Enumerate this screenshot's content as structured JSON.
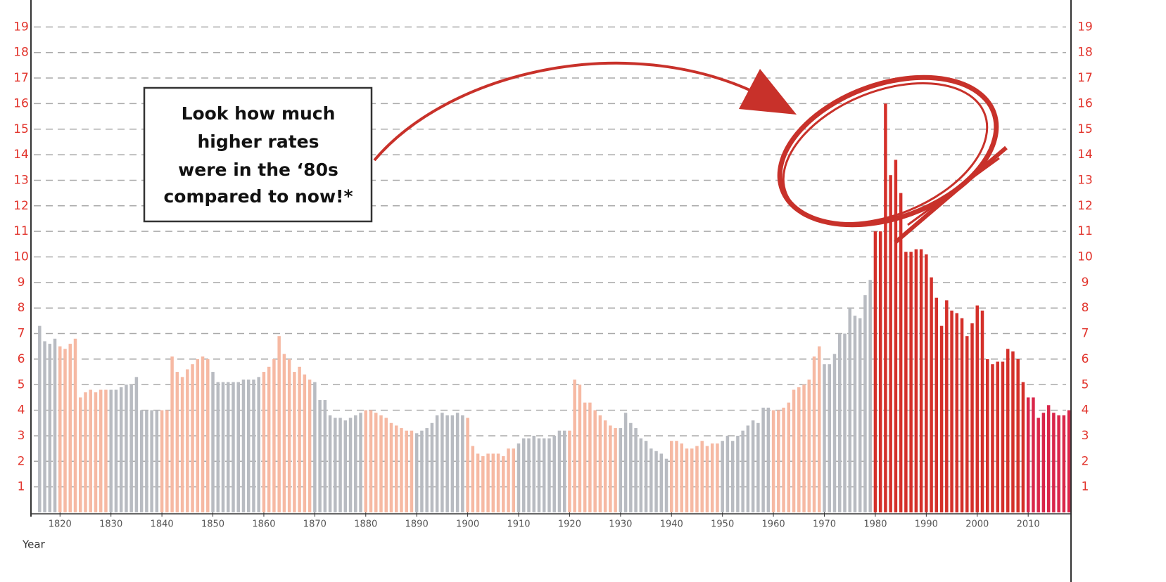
{
  "chart_data": {
    "type": "bar",
    "annotation": [
      "Look how much",
      "higher rates",
      "were in the ‘80s",
      "compared to now!*"
    ],
    "x_label": "Year",
    "x": [
      1816,
      1817,
      1818,
      1819,
      1820,
      1821,
      1822,
      1823,
      1824,
      1825,
      1826,
      1827,
      1828,
      1829,
      1830,
      1831,
      1832,
      1833,
      1834,
      1835,
      1836,
      1837,
      1838,
      1839,
      1840,
      1841,
      1842,
      1843,
      1844,
      1845,
      1846,
      1847,
      1848,
      1849,
      1850,
      1851,
      1852,
      1853,
      1854,
      1855,
      1856,
      1857,
      1858,
      1859,
      1860,
      1861,
      1862,
      1863,
      1864,
      1865,
      1866,
      1867,
      1868,
      1869,
      1870,
      1871,
      1872,
      1873,
      1874,
      1875,
      1876,
      1877,
      1878,
      1879,
      1880,
      1881,
      1882,
      1883,
      1884,
      1885,
      1886,
      1887,
      1888,
      1889,
      1890,
      1891,
      1892,
      1893,
      1894,
      1895,
      1896,
      1897,
      1898,
      1899,
      1900,
      1901,
      1902,
      1903,
      1904,
      1905,
      1906,
      1907,
      1908,
      1909,
      1910,
      1911,
      1912,
      1913,
      1914,
      1915,
      1916,
      1917,
      1918,
      1919,
      1920,
      1921,
      1922,
      1923,
      1924,
      1925,
      1926,
      1927,
      1928,
      1929,
      1930,
      1931,
      1932,
      1933,
      1934,
      1935,
      1936,
      1937,
      1938,
      1939,
      1940,
      1941,
      1942,
      1943,
      1944,
      1945,
      1946,
      1947,
      1948,
      1949,
      1950,
      1951,
      1952,
      1953,
      1954,
      1955,
      1956,
      1957,
      1958,
      1959,
      1960,
      1961,
      1962,
      1963,
      1964,
      1965,
      1966,
      1967,
      1968,
      1969,
      1970,
      1971,
      1972,
      1973,
      1974,
      1975,
      1976,
      1977,
      1978,
      1979,
      1980,
      1981,
      1982,
      1983,
      1984,
      1985,
      1986,
      1987,
      1988,
      1989,
      1990,
      1991,
      1992,
      1993,
      1994,
      1995,
      1996,
      1997,
      1998,
      1999,
      2000,
      2001,
      2002,
      2003,
      2004,
      2005,
      2006,
      2007,
      2008,
      2009,
      2010,
      2011,
      2012,
      2013,
      2014,
      2015,
      2016,
      2017,
      2018
    ],
    "values": [
      7.3,
      6.7,
      6.6,
      6.8,
      6.5,
      6.4,
      6.6,
      6.8,
      4.5,
      4.7,
      4.8,
      4.7,
      4.8,
      4.8,
      4.8,
      4.8,
      4.9,
      5.0,
      5.0,
      5.3,
      4.0,
      4.0,
      4.0,
      4.0,
      4.0,
      4.0,
      6.1,
      5.5,
      5.3,
      5.6,
      5.8,
      6.0,
      6.1,
      6.0,
      5.5,
      5.1,
      5.1,
      5.1,
      5.1,
      5.1,
      5.2,
      5.2,
      5.2,
      5.3,
      5.5,
      5.7,
      6.0,
      6.9,
      6.2,
      6.0,
      5.5,
      5.7,
      5.4,
      5.2,
      5.1,
      4.4,
      4.4,
      3.8,
      3.7,
      3.7,
      3.6,
      3.7,
      3.8,
      3.9,
      4.0,
      4.0,
      3.9,
      3.8,
      3.7,
      3.5,
      3.4,
      3.3,
      3.2,
      3.2,
      3.1,
      3.2,
      3.3,
      3.5,
      3.8,
      3.9,
      3.8,
      3.8,
      3.9,
      3.8,
      3.7,
      2.6,
      2.3,
      2.2,
      2.3,
      2.3,
      2.3,
      2.2,
      2.5,
      2.5,
      2.7,
      2.9,
      2.9,
      3.0,
      2.9,
      2.9,
      2.9,
      3.0,
      3.2,
      3.2,
      3.2,
      5.2,
      5.0,
      4.3,
      4.3,
      4.0,
      3.8,
      3.6,
      3.4,
      3.3,
      3.3,
      3.9,
      3.5,
      3.3,
      2.9,
      2.8,
      2.5,
      2.4,
      2.3,
      2.1,
      2.8,
      2.8,
      2.7,
      2.5,
      2.5,
      2.6,
      2.8,
      2.6,
      2.7,
      2.7,
      2.8,
      3.0,
      2.8,
      3.0,
      3.2,
      3.4,
      3.6,
      3.5,
      4.1,
      4.1,
      4.0,
      4.0,
      4.1,
      4.3,
      4.8,
      4.9,
      5.0,
      5.2,
      6.1,
      6.5,
      5.8,
      5.8,
      6.2,
      7.0,
      7.0,
      8.0,
      7.7,
      7.6,
      8.5,
      9.1,
      11.0,
      11.0,
      16.0,
      13.2,
      13.8,
      12.5,
      10.2,
      10.2,
      10.3,
      10.3,
      10.1,
      9.2,
      8.4,
      7.3,
      8.3,
      7.9,
      7.8,
      7.6,
      6.9,
      7.4,
      8.1,
      7.9,
      6.0,
      5.8,
      5.9,
      5.9,
      6.4,
      6.3,
      6.0,
      5.1,
      4.5,
      4.5,
      3.7,
      3.9,
      4.2,
      3.9,
      3.8,
      3.8,
      4.0
    ],
    "decade_colors": [
      "#b8bbc1",
      "#f6b9a3",
      "#b8bbc1",
      "#f6b9a3",
      "#b8bbc1",
      "#f6b9a3",
      "#b8bbc1",
      "#f6b9a3",
      "#b8bbc1",
      "#f6b9a3",
      "#b8bbc1",
      "#f6b9a3",
      "#b8bbc1",
      "#f6b9a3",
      "#b8bbc1",
      "#f6b9a3",
      "#b8bbc1",
      "#d4302a",
      "#d4302a",
      "#d4302a",
      "#d9264a"
    ],
    "xlim": [
      1814.3,
      2018.4
    ],
    "xticks": [
      1820,
      1830,
      1840,
      1850,
      1860,
      1870,
      1880,
      1890,
      1900,
      1910,
      1920,
      1930,
      1940,
      1950,
      1960,
      1970,
      1980,
      1990,
      2000,
      2010
    ],
    "ylim": [
      0,
      20
    ],
    "yticks": [
      1,
      2,
      3,
      4,
      5,
      6,
      7,
      8,
      9,
      10,
      11,
      12,
      13,
      14,
      15,
      16,
      17,
      18,
      19
    ],
    "grid": true
  }
}
